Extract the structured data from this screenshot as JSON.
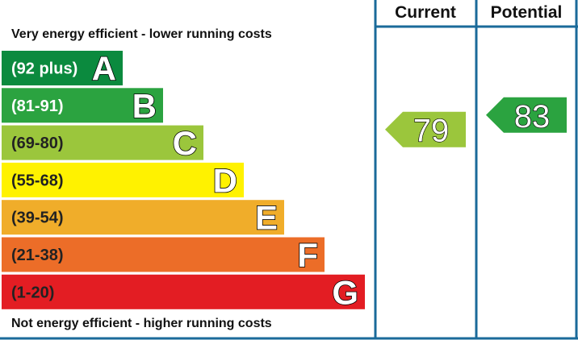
{
  "chart_data": {
    "type": "bar",
    "top_caption": "Very energy efficient - lower running costs",
    "bottom_caption": "Not energy efficient - higher running costs",
    "bands": [
      {
        "letter": "A",
        "range": "(92 plus)",
        "min": 92,
        "max": 100,
        "color": "#0b8a3e",
        "text_color": "#ffffff"
      },
      {
        "letter": "B",
        "range": "(81-91)",
        "min": 81,
        "max": 91,
        "color": "#2ba340",
        "text_color": "#ffffff"
      },
      {
        "letter": "C",
        "range": "(69-80)",
        "min": 69,
        "max": 80,
        "color": "#9bc63c",
        "text_color": "#222222"
      },
      {
        "letter": "D",
        "range": "(55-68)",
        "min": 55,
        "max": 68,
        "color": "#fff200",
        "text_color": "#222222"
      },
      {
        "letter": "E",
        "range": "(39-54)",
        "min": 39,
        "max": 54,
        "color": "#f0ad2a",
        "text_color": "#222222"
      },
      {
        "letter": "F",
        "range": "(21-38)",
        "min": 21,
        "max": 38,
        "color": "#ec6d28",
        "text_color": "#222222"
      },
      {
        "letter": "G",
        "range": "(1-20)",
        "min": 1,
        "max": 20,
        "color": "#e31d23",
        "text_color": "#222222"
      }
    ],
    "columns": [
      {
        "header": "Current",
        "value": 79,
        "band": "C",
        "color": "#9bc63c"
      },
      {
        "header": "Potential",
        "value": 83,
        "band": "B",
        "color": "#2ba340"
      }
    ],
    "frame_color": "#1a6a9a"
  }
}
